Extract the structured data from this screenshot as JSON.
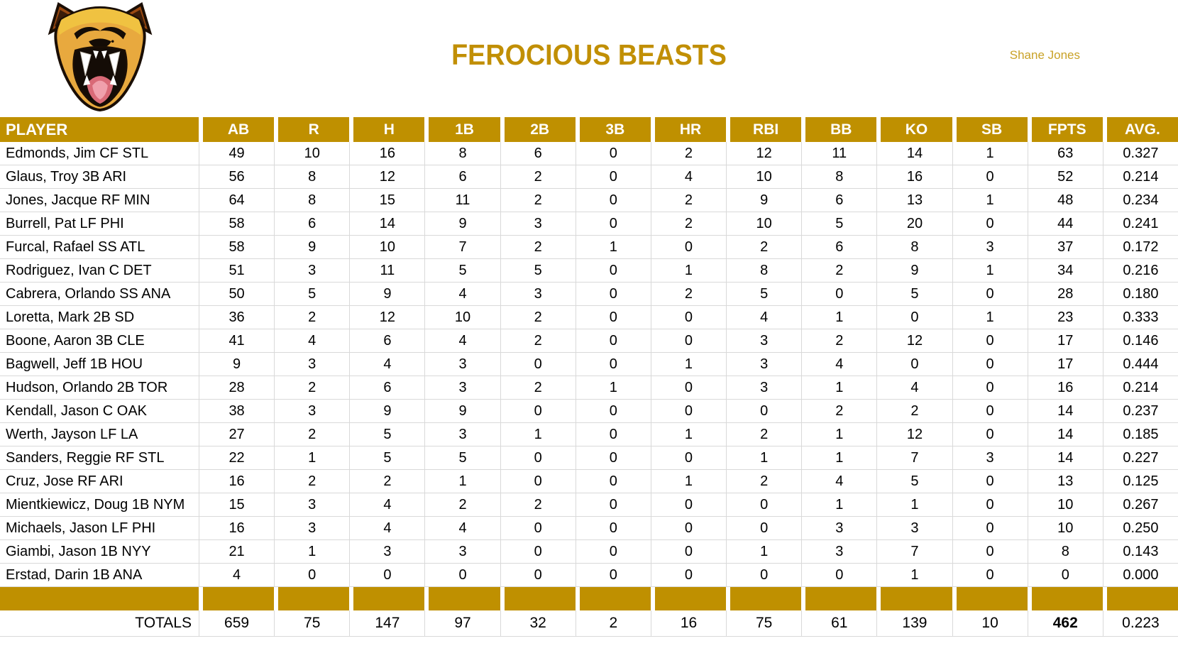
{
  "header": {
    "title": "FEROCIOUS BEASTS",
    "owner": "Shane Jones",
    "logo": "cougar-head"
  },
  "colors": {
    "gold": "#BF9000",
    "title_gold": "#C18F04",
    "owner_gold": "#C9A227",
    "gridline": "#D9D9D9",
    "header_text": "#FFFFFF",
    "body_text": "#000000"
  },
  "table": {
    "columns": [
      "PLAYER",
      "AB",
      "R",
      "H",
      "1B",
      "2B",
      "3B",
      "HR",
      "RBI",
      "BB",
      "KO",
      "SB",
      "FPTS",
      "AVG."
    ],
    "rows": [
      [
        "Edmonds, Jim CF STL",
        "49",
        "10",
        "16",
        "8",
        "6",
        "0",
        "2",
        "12",
        "11",
        "14",
        "1",
        "63",
        "0.327"
      ],
      [
        "Glaus, Troy 3B ARI",
        "56",
        "8",
        "12",
        "6",
        "2",
        "0",
        "4",
        "10",
        "8",
        "16",
        "0",
        "52",
        "0.214"
      ],
      [
        "Jones, Jacque RF MIN",
        "64",
        "8",
        "15",
        "11",
        "2",
        "0",
        "2",
        "9",
        "6",
        "13",
        "1",
        "48",
        "0.234"
      ],
      [
        "Burrell, Pat LF PHI",
        "58",
        "6",
        "14",
        "9",
        "3",
        "0",
        "2",
        "10",
        "5",
        "20",
        "0",
        "44",
        "0.241"
      ],
      [
        "Furcal, Rafael SS ATL",
        "58",
        "9",
        "10",
        "7",
        "2",
        "1",
        "0",
        "2",
        "6",
        "8",
        "3",
        "37",
        "0.172"
      ],
      [
        "Rodriguez, Ivan C DET",
        "51",
        "3",
        "11",
        "5",
        "5",
        "0",
        "1",
        "8",
        "2",
        "9",
        "1",
        "34",
        "0.216"
      ],
      [
        "Cabrera, Orlando SS ANA",
        "50",
        "5",
        "9",
        "4",
        "3",
        "0",
        "2",
        "5",
        "0",
        "5",
        "0",
        "28",
        "0.180"
      ],
      [
        "Loretta, Mark 2B SD",
        "36",
        "2",
        "12",
        "10",
        "2",
        "0",
        "0",
        "4",
        "1",
        "0",
        "1",
        "23",
        "0.333"
      ],
      [
        "Boone, Aaron 3B CLE",
        "41",
        "4",
        "6",
        "4",
        "2",
        "0",
        "0",
        "3",
        "2",
        "12",
        "0",
        "17",
        "0.146"
      ],
      [
        "Bagwell, Jeff 1B HOU",
        "9",
        "3",
        "4",
        "3",
        "0",
        "0",
        "1",
        "3",
        "4",
        "0",
        "0",
        "17",
        "0.444"
      ],
      [
        "Hudson, Orlando 2B TOR",
        "28",
        "2",
        "6",
        "3",
        "2",
        "1",
        "0",
        "3",
        "1",
        "4",
        "0",
        "16",
        "0.214"
      ],
      [
        "Kendall, Jason C OAK",
        "38",
        "3",
        "9",
        "9",
        "0",
        "0",
        "0",
        "0",
        "2",
        "2",
        "0",
        "14",
        "0.237"
      ],
      [
        "Werth, Jayson LF LA",
        "27",
        "2",
        "5",
        "3",
        "1",
        "0",
        "1",
        "2",
        "1",
        "12",
        "0",
        "14",
        "0.185"
      ],
      [
        "Sanders, Reggie RF STL",
        "22",
        "1",
        "5",
        "5",
        "0",
        "0",
        "0",
        "1",
        "1",
        "7",
        "3",
        "14",
        "0.227"
      ],
      [
        "Cruz, Jose RF ARI",
        "16",
        "2",
        "2",
        "1",
        "0",
        "0",
        "1",
        "2",
        "4",
        "5",
        "0",
        "13",
        "0.125"
      ],
      [
        "Mientkiewicz, Doug 1B NYM",
        "15",
        "3",
        "4",
        "2",
        "2",
        "0",
        "0",
        "0",
        "1",
        "1",
        "0",
        "10",
        "0.267"
      ],
      [
        "Michaels, Jason LF PHI",
        "16",
        "3",
        "4",
        "4",
        "0",
        "0",
        "0",
        "0",
        "3",
        "3",
        "0",
        "10",
        "0.250"
      ],
      [
        "Giambi, Jason 1B NYY",
        "21",
        "1",
        "3",
        "3",
        "0",
        "0",
        "0",
        "1",
        "3",
        "7",
        "0",
        "8",
        "0.143"
      ],
      [
        "Erstad, Darin 1B ANA",
        "4",
        "0",
        "0",
        "0",
        "0",
        "0",
        "0",
        "0",
        "0",
        "1",
        "0",
        "0",
        "0.000"
      ]
    ],
    "totals_label": "TOTALS",
    "totals": [
      "659",
      "75",
      "147",
      "97",
      "32",
      "2",
      "16",
      "75",
      "61",
      "139",
      "10",
      "462",
      "0.223"
    ],
    "bold_total_column": "FPTS"
  }
}
